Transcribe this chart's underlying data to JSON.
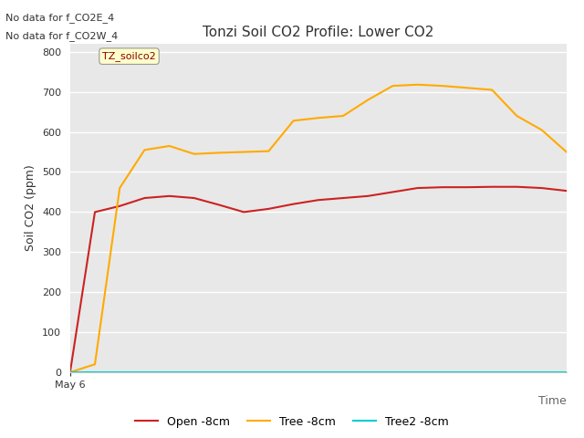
{
  "title": "Tonzi Soil CO2 Profile: Lower CO2",
  "ylabel": "Soil CO2 (ppm)",
  "xlabel": "Time",
  "ylim": [
    0,
    820
  ],
  "yticks": [
    0,
    100,
    200,
    300,
    400,
    500,
    600,
    700,
    800
  ],
  "xstart_label": "May 6",
  "annotation_lines": [
    "No data for f_CO2E_4",
    "No data for f_CO2W_4"
  ],
  "legend_label": "TZ_soilco2",
  "fig_bg": "#ffffff",
  "plot_bg": "#e8e8e8",
  "series": {
    "open": {
      "label": "Open -8cm",
      "color": "#cc2222",
      "x": [
        0,
        1,
        2,
        3,
        4,
        5,
        6,
        7,
        8,
        9,
        10,
        11,
        12,
        13,
        14,
        15,
        16,
        17,
        18,
        19,
        20
      ],
      "y": [
        0,
        400,
        415,
        435,
        440,
        435,
        418,
        400,
        408,
        420,
        430,
        435,
        440,
        450,
        460,
        462,
        462,
        463,
        463,
        460,
        453
      ]
    },
    "tree": {
      "label": "Tree -8cm",
      "color": "#ffaa00",
      "x": [
        0,
        1,
        2,
        3,
        4,
        5,
        6,
        7,
        8,
        9,
        10,
        11,
        12,
        13,
        14,
        15,
        16,
        17,
        18,
        19,
        20
      ],
      "y": [
        0,
        20,
        460,
        555,
        565,
        545,
        548,
        550,
        552,
        628,
        635,
        640,
        680,
        715,
        718,
        715,
        710,
        705,
        640,
        605,
        550
      ]
    },
    "tree2": {
      "label": "Tree2 -8cm",
      "color": "#00cccc",
      "x": [
        0,
        20
      ],
      "y": [
        0,
        0
      ]
    }
  }
}
